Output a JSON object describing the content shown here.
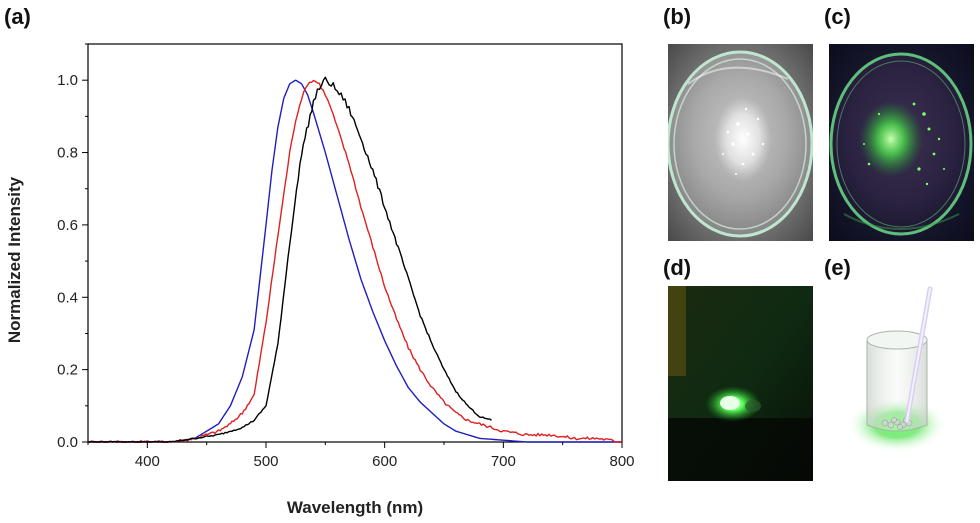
{
  "panels": {
    "a": "(a)",
    "b": "(b)",
    "c": "(c)",
    "d": "(d)",
    "e": "(e)"
  },
  "chart_data": {
    "type": "line",
    "xlabel": "Wavelength (nm)",
    "ylabel": "Normalized Intensity",
    "xlim": [
      350,
      800
    ],
    "ylim": [
      0,
      1.1
    ],
    "xticks": [
      400,
      500,
      600,
      700,
      800
    ],
    "yticks": [
      0.0,
      0.2,
      0.4,
      0.6,
      0.8,
      1.0
    ],
    "grid": false,
    "series": [
      {
        "color": "#1f1fbf",
        "x": [
          350,
          420,
          440,
          460,
          470,
          480,
          490,
          500,
          505,
          510,
          515,
          520,
          525,
          530,
          535,
          540,
          550,
          560,
          570,
          580,
          590,
          600,
          610,
          620,
          630,
          640,
          650,
          660,
          680,
          700,
          720,
          750,
          800
        ],
        "y": [
          0.0,
          0.0,
          0.01,
          0.05,
          0.1,
          0.18,
          0.31,
          0.6,
          0.75,
          0.87,
          0.95,
          0.99,
          1.0,
          0.99,
          0.96,
          0.91,
          0.8,
          0.68,
          0.56,
          0.45,
          0.36,
          0.28,
          0.21,
          0.15,
          0.11,
          0.08,
          0.05,
          0.03,
          0.01,
          0.005,
          0.0,
          0.0,
          0.0
        ]
      },
      {
        "color": "#e02020",
        "x": [
          350,
          420,
          440,
          460,
          470,
          480,
          490,
          500,
          510,
          520,
          525,
          530,
          535,
          540,
          545,
          550,
          555,
          560,
          570,
          580,
          590,
          600,
          610,
          620,
          630,
          640,
          650,
          660,
          670,
          680,
          700,
          720,
          740,
          760,
          780,
          800
        ],
        "y": [
          0.0,
          0.0,
          0.01,
          0.03,
          0.05,
          0.08,
          0.13,
          0.33,
          0.57,
          0.8,
          0.89,
          0.95,
          0.99,
          1.0,
          0.99,
          0.96,
          0.92,
          0.87,
          0.77,
          0.65,
          0.54,
          0.43,
          0.34,
          0.26,
          0.2,
          0.15,
          0.11,
          0.08,
          0.06,
          0.05,
          0.03,
          0.02,
          0.02,
          0.01,
          0.01,
          0.0
        ]
      },
      {
        "color": "#000000",
        "x": [
          350,
          420,
          440,
          460,
          470,
          480,
          490,
          500,
          510,
          520,
          530,
          540,
          545,
          550,
          555,
          560,
          565,
          570,
          580,
          590,
          600,
          610,
          620,
          630,
          640,
          650,
          660,
          670,
          680,
          690
        ],
        "y": [
          0.0,
          0.0,
          0.01,
          0.02,
          0.03,
          0.04,
          0.06,
          0.1,
          0.27,
          0.55,
          0.8,
          0.94,
          0.98,
          1.0,
          0.99,
          0.97,
          0.95,
          0.92,
          0.84,
          0.75,
          0.65,
          0.55,
          0.45,
          0.35,
          0.27,
          0.2,
          0.14,
          0.1,
          0.07,
          0.06
        ]
      }
    ]
  }
}
